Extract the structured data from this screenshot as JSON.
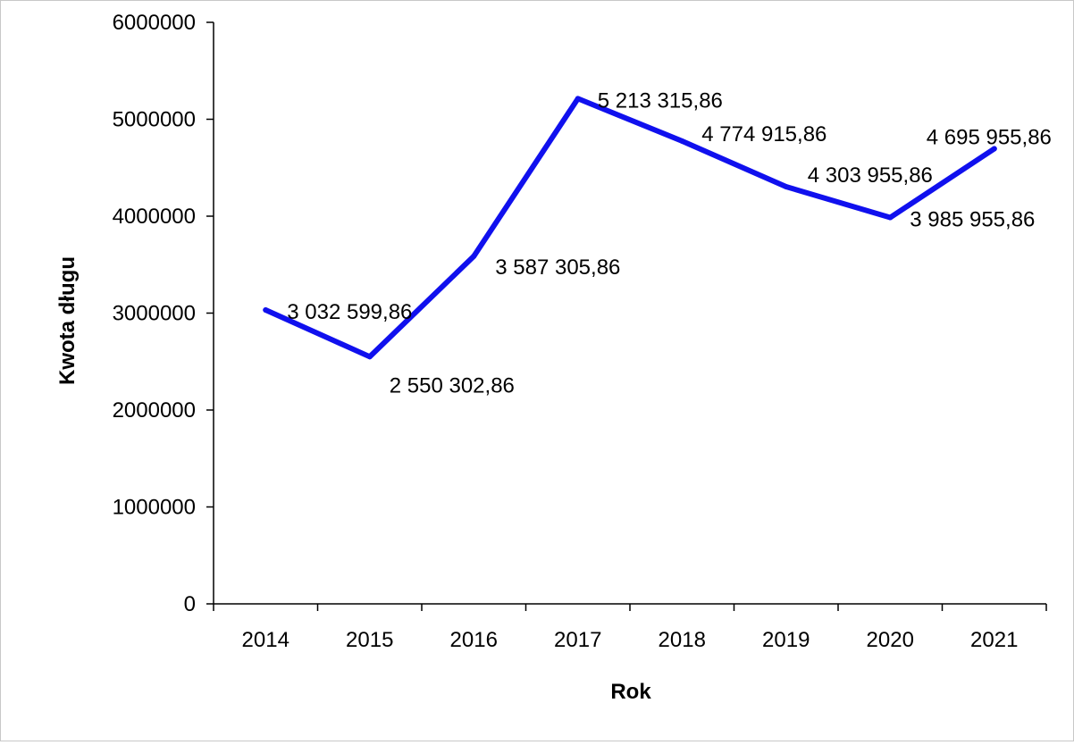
{
  "chart_data": {
    "type": "line",
    "xlabel": "Rok",
    "ylabel": "Kwota długu",
    "categories": [
      "2014",
      "2015",
      "2016",
      "2017",
      "2018",
      "2019",
      "2020",
      "2021"
    ],
    "series": [
      {
        "values": [
          3032599.86,
          2550302.86,
          3587305.86,
          5213315.86,
          4774915.86,
          4303955.86,
          3985955.86,
          4695955.86
        ],
        "labels": [
          "3 032 599,86",
          "2 550 302,86",
          "3 587 305,86",
          "5 213 315,86",
          "4 774 915,86",
          "4 303 955,86",
          "3 985 955,86",
          "4 695 955,86"
        ],
        "color": "#1010ee"
      }
    ],
    "ylim": [
      0,
      6000000
    ],
    "yticks": [
      "0",
      "1000000",
      "2000000",
      "3000000",
      "4000000",
      "5000000",
      "6000000"
    ],
    "grid": false,
    "legend": "none"
  }
}
